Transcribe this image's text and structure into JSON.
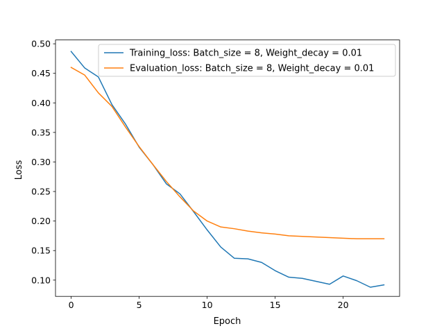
{
  "chart_data": {
    "type": "line",
    "title": "",
    "xlabel": "Epoch",
    "ylabel": "Loss",
    "xlim": [
      -1.15,
      24.15
    ],
    "ylim": [
      0.0725,
      0.5065
    ],
    "xticks": [
      0,
      5,
      10,
      15,
      20
    ],
    "xtick_labels": [
      "0",
      "5",
      "10",
      "15",
      "20"
    ],
    "yticks": [
      0.1,
      0.15,
      0.2,
      0.25,
      0.3,
      0.35,
      0.4,
      0.45,
      0.5
    ],
    "ytick_labels": [
      "0.10",
      "0.15",
      "0.20",
      "0.25",
      "0.30",
      "0.35",
      "0.40",
      "0.45",
      "0.50"
    ],
    "grid": false,
    "legend_position": "top-right",
    "x": [
      0,
      1,
      2,
      3,
      4,
      5,
      6,
      7,
      8,
      9,
      10,
      11,
      12,
      13,
      14,
      15,
      16,
      17,
      18,
      19,
      20,
      21,
      22,
      23
    ],
    "series": [
      {
        "name": "Training_loss: Batch_size = 8, Weight_decay = 0.01",
        "color": "#1f77b4",
        "values": [
          0.487,
          0.459,
          0.444,
          0.397,
          0.364,
          0.325,
          0.296,
          0.263,
          0.246,
          0.216,
          0.185,
          0.156,
          0.137,
          0.136,
          0.13,
          0.116,
          0.105,
          0.103,
          0.098,
          0.093,
          0.107,
          0.099,
          0.088,
          0.092
        ]
      },
      {
        "name": "Evaluation_loss: Batch_size = 8, Weight_decay = 0.01",
        "color": "#ff7f0e",
        "values": [
          0.46,
          0.447,
          0.417,
          0.394,
          0.359,
          0.326,
          0.296,
          0.267,
          0.241,
          0.217,
          0.2,
          0.19,
          0.187,
          0.183,
          0.18,
          0.178,
          0.175,
          0.174,
          0.173,
          0.172,
          0.171,
          0.17,
          0.17,
          0.17
        ]
      }
    ]
  }
}
